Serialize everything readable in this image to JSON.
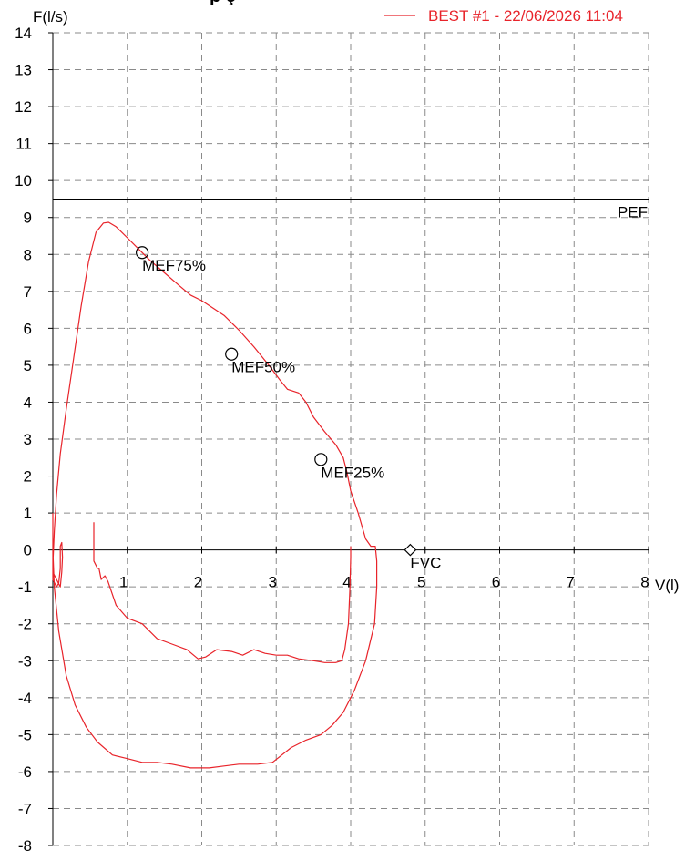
{
  "chart_data": {
    "type": "line",
    "title_fragment": "p ç",
    "xlabel": "V(l)",
    "ylabel": "F(l/s)",
    "xlim": [
      0,
      8
    ],
    "ylim": [
      -8,
      14
    ],
    "x_ticks": [
      "1",
      "2",
      "3",
      "4",
      "5",
      "6",
      "7",
      "8"
    ],
    "y_ticks": [
      "14",
      "13",
      "12",
      "11",
      "10",
      "9",
      "8",
      "7",
      "6",
      "5",
      "4",
      "3",
      "2",
      "1",
      "0",
      "-1",
      "-2",
      "-3",
      "-4",
      "-5",
      "-6",
      "-7",
      "-8"
    ],
    "grid": true,
    "legend": {
      "position": "top-right",
      "entries": [
        {
          "label": "BEST #1 - 22/06/2026  11:04",
          "color": "#e8232a"
        }
      ]
    },
    "pef": {
      "label": "PEF",
      "value": 9.5
    },
    "markers": [
      {
        "label": "MEF75%",
        "x": 1.2,
        "y": 8.05,
        "shape": "circle"
      },
      {
        "label": "MEF50%",
        "x": 2.4,
        "y": 5.3,
        "shape": "circle"
      },
      {
        "label": "MEF25%",
        "x": 3.6,
        "y": 2.45,
        "shape": "circle"
      },
      {
        "label": "FVC",
        "x": 4.8,
        "y": 0.0,
        "shape": "diamond"
      }
    ],
    "series": [
      {
        "color": "#e8232a",
        "segments": [
          [
            [
              0.55,
              0.75
            ],
            [
              0.55,
              -0.3
            ],
            [
              0.6,
              -0.5
            ],
            [
              0.62,
              -0.5
            ],
            [
              0.65,
              -0.8
            ],
            [
              0.7,
              -0.7
            ],
            [
              0.74,
              -0.85
            ],
            [
              0.85,
              -1.5
            ],
            [
              1.0,
              -1.85
            ],
            [
              1.2,
              -2.0
            ],
            [
              1.4,
              -2.4
            ],
            [
              1.6,
              -2.55
            ],
            [
              1.8,
              -2.7
            ],
            [
              1.95,
              -2.95
            ],
            [
              2.05,
              -2.9
            ],
            [
              2.2,
              -2.7
            ],
            [
              2.4,
              -2.75
            ],
            [
              2.55,
              -2.85
            ],
            [
              2.7,
              -2.7
            ],
            [
              2.85,
              -2.8
            ],
            [
              3.0,
              -2.85
            ],
            [
              3.15,
              -2.85
            ],
            [
              3.3,
              -2.95
            ],
            [
              3.5,
              -3.0
            ],
            [
              3.65,
              -3.05
            ],
            [
              3.8,
              -3.05
            ],
            [
              3.88,
              -3.0
            ],
            [
              3.92,
              -2.7
            ],
            [
              3.97,
              -2.0
            ],
            [
              3.99,
              -1.0
            ],
            [
              4.0,
              -0.2
            ],
            [
              4.0,
              0.1
            ]
          ],
          [
            [
              0.0,
              1.0
            ],
            [
              0.0,
              -0.6
            ],
            [
              0.1,
              -1.0
            ],
            [
              0.12,
              -0.6
            ],
            [
              0.13,
              -0.2
            ],
            [
              0.12,
              0.2
            ],
            [
              0.1,
              0.1
            ],
            [
              0.1,
              -0.5
            ],
            [
              0.08,
              -0.9
            ],
            [
              0.05,
              -1.0
            ],
            [
              0.0,
              -0.8
            ],
            [
              0.0,
              -0.4
            ],
            [
              0.02,
              0.5
            ],
            [
              0.05,
              1.5
            ],
            [
              0.1,
              2.6
            ],
            [
              0.18,
              3.8
            ],
            [
              0.28,
              5.2
            ],
            [
              0.38,
              6.6
            ],
            [
              0.48,
              7.8
            ],
            [
              0.58,
              8.6
            ],
            [
              0.68,
              8.85
            ],
            [
              0.75,
              8.87
            ],
            [
              0.85,
              8.75
            ],
            [
              1.0,
              8.45
            ],
            [
              1.15,
              8.15
            ],
            [
              1.3,
              7.85
            ],
            [
              1.5,
              7.5
            ],
            [
              1.7,
              7.15
            ],
            [
              1.85,
              6.9
            ],
            [
              2.0,
              6.75
            ],
            [
              2.15,
              6.55
            ],
            [
              2.3,
              6.35
            ],
            [
              2.5,
              5.95
            ],
            [
              2.7,
              5.5
            ],
            [
              2.9,
              5.0
            ],
            [
              3.05,
              4.6
            ],
            [
              3.15,
              4.35
            ],
            [
              3.3,
              4.25
            ],
            [
              3.4,
              4.0
            ],
            [
              3.5,
              3.6
            ],
            [
              3.65,
              3.2
            ],
            [
              3.8,
              2.85
            ],
            [
              3.9,
              2.5
            ],
            [
              3.95,
              2.1
            ],
            [
              4.0,
              1.6
            ],
            [
              4.1,
              1.0
            ],
            [
              4.2,
              0.3
            ],
            [
              4.27,
              0.1
            ],
            [
              4.33,
              0.1
            ],
            [
              4.35,
              -0.3
            ],
            [
              4.35,
              -1.0
            ],
            [
              4.32,
              -2.0
            ],
            [
              4.2,
              -3.0
            ],
            [
              4.05,
              -3.8
            ],
            [
              3.9,
              -4.4
            ],
            [
              3.75,
              -4.75
            ],
            [
              3.6,
              -5.0
            ],
            [
              3.4,
              -5.15
            ],
            [
              3.2,
              -5.35
            ],
            [
              2.95,
              -5.75
            ],
            [
              2.75,
              -5.8
            ],
            [
              2.5,
              -5.8
            ],
            [
              2.3,
              -5.85
            ],
            [
              2.1,
              -5.9
            ],
            [
              1.85,
              -5.9
            ],
            [
              1.6,
              -5.8
            ],
            [
              1.4,
              -5.75
            ],
            [
              1.2,
              -5.75
            ],
            [
              1.0,
              -5.65
            ],
            [
              0.8,
              -5.55
            ],
            [
              0.6,
              -5.2
            ],
            [
              0.45,
              -4.8
            ],
            [
              0.3,
              -4.2
            ],
            [
              0.18,
              -3.4
            ],
            [
              0.08,
              -2.2
            ],
            [
              0.02,
              -1.0
            ],
            [
              0.0,
              0.0
            ]
          ]
        ]
      }
    ]
  }
}
